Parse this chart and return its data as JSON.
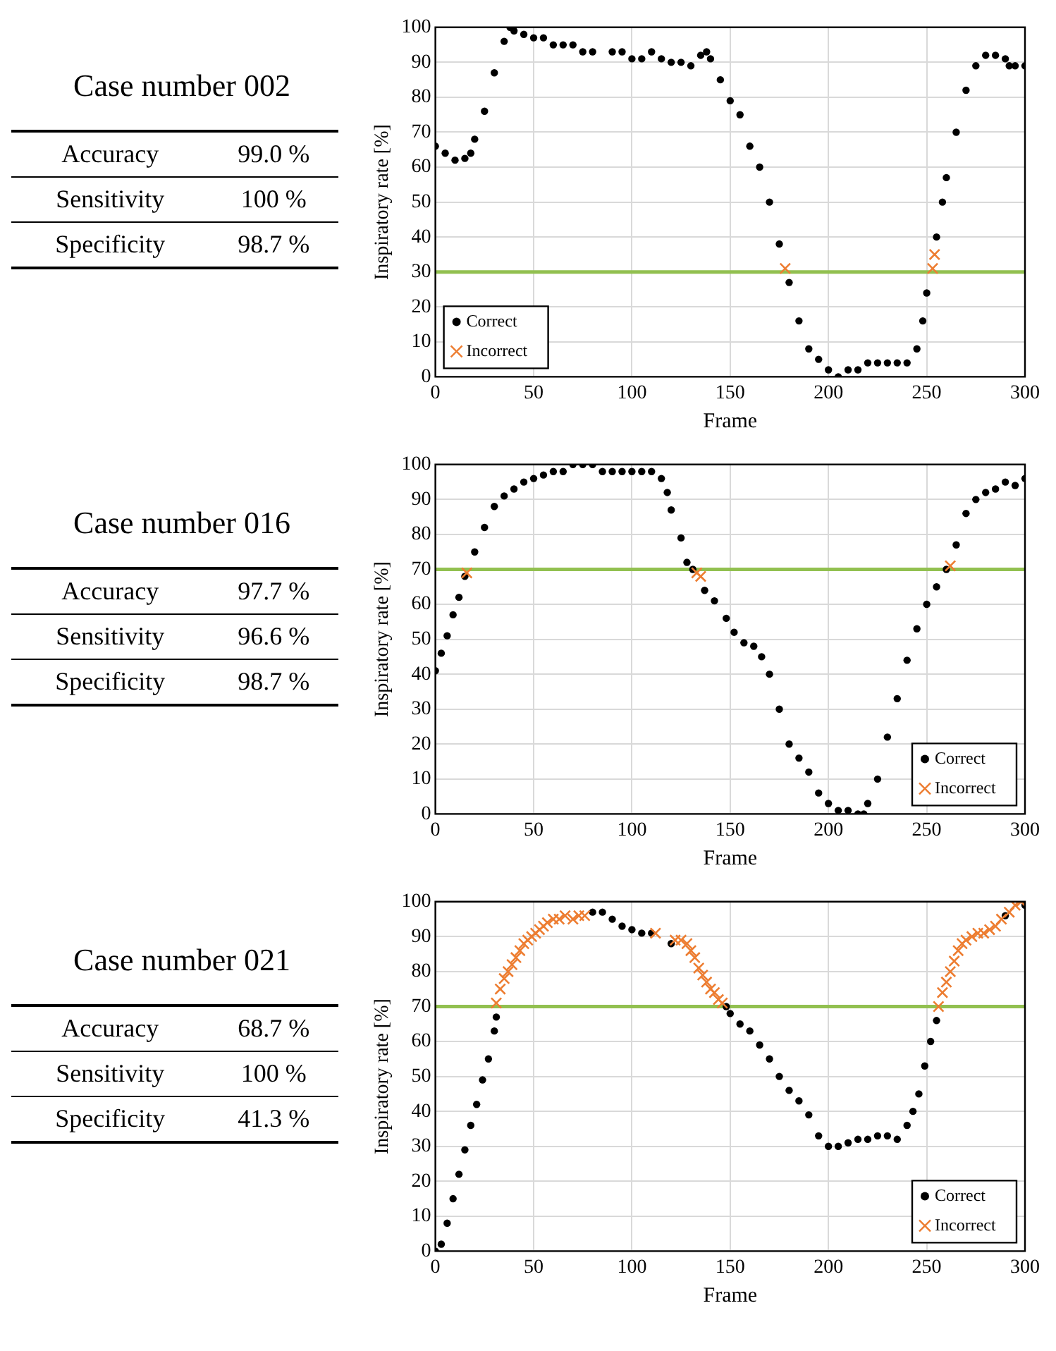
{
  "chart_data": [
    {
      "type": "other",
      "title": "Case number 002",
      "annotations": [
        "Accuracy",
        "99.0 %",
        "Sensitivity",
        "100 %",
        "Specificity",
        "98.7 %"
      ]
    },
    {
      "type": "scatter",
      "xlabel": "Frame",
      "ylabel": "Inspiratory rate [%]",
      "xlim": [
        0,
        300
      ],
      "xticks": [
        0,
        50,
        100,
        150,
        200,
        250,
        300
      ],
      "ylim": [
        0,
        100
      ],
      "yticks": [
        0,
        10,
        20,
        30,
        40,
        50,
        60,
        70,
        80,
        90,
        100
      ],
      "grid": true,
      "legend": "bottom left",
      "ref_lines": [
        {
          "axis": "y",
          "value": 30,
          "color": "#92c050"
        }
      ],
      "series": [
        {
          "name": "Correct",
          "color": "#000000",
          "marker": "circle",
          "x": [
            0,
            5,
            10,
            15,
            18,
            20,
            25,
            30,
            35,
            38,
            40,
            45,
            50,
            55,
            60,
            65,
            70,
            75,
            80,
            90,
            95,
            100,
            105,
            110,
            115,
            120,
            125,
            130,
            135,
            138,
            140,
            145,
            150,
            155,
            160,
            165,
            170,
            175,
            180,
            185,
            190,
            195,
            200,
            205,
            210,
            215,
            220,
            225,
            230,
            235,
            240,
            245,
            248,
            250,
            255,
            258,
            260,
            265,
            270,
            275,
            280,
            285,
            290,
            292,
            295,
            300
          ],
          "values": [
            66,
            64,
            62,
            62.5,
            64,
            68,
            76,
            87,
            96,
            100,
            99,
            98,
            97,
            97,
            95,
            95,
            95,
            93,
            93,
            93,
            93,
            91,
            91,
            93,
            91,
            90,
            90,
            89,
            92,
            93,
            91,
            85,
            79,
            75,
            66,
            60,
            50,
            38,
            27,
            16,
            8,
            5,
            2,
            0,
            2,
            2,
            4,
            4,
            4,
            4,
            4,
            8,
            16,
            24,
            40,
            50,
            57,
            70,
            82,
            89,
            92,
            92,
            91,
            89,
            89,
            89
          ]
        },
        {
          "name": "Incorrect",
          "color": "#ed7d31",
          "marker": "cross",
          "x": [
            178,
            253,
            254
          ],
          "values": [
            31,
            31,
            35
          ]
        }
      ]
    },
    {
      "type": "other",
      "title": "Case number 016",
      "annotations": [
        "Accuracy",
        "97.7 %",
        "Sensitivity",
        "96.6 %",
        "Specificity",
        "98.7 %"
      ]
    },
    {
      "type": "scatter",
      "xlabel": "Frame",
      "ylabel": "Inspiratory rate [%]",
      "xlim": [
        0,
        300
      ],
      "xticks": [
        0,
        50,
        100,
        150,
        200,
        250,
        300
      ],
      "ylim": [
        0,
        100
      ],
      "yticks": [
        0,
        10,
        20,
        30,
        40,
        50,
        60,
        70,
        80,
        90,
        100
      ],
      "grid": true,
      "legend": "bottom right",
      "ref_lines": [
        {
          "axis": "y",
          "value": 70,
          "color": "#92c050"
        }
      ],
      "series": [
        {
          "name": "Correct",
          "color": "#000000",
          "marker": "circle",
          "x": [
            0,
            3,
            6,
            9,
            12,
            15,
            20,
            25,
            30,
            35,
            40,
            45,
            50,
            55,
            60,
            65,
            70,
            75,
            80,
            85,
            90,
            95,
            100,
            105,
            110,
            115,
            118,
            120,
            125,
            128,
            131,
            137,
            142,
            148,
            152,
            157,
            162,
            166,
            170,
            175,
            180,
            185,
            190,
            195,
            200,
            205,
            210,
            215,
            218,
            220,
            225,
            230,
            235,
            240,
            245,
            250,
            255,
            260,
            265,
            270,
            275,
            280,
            285,
            290,
            295,
            300
          ],
          "values": [
            41,
            46,
            51,
            57,
            62,
            68,
            75,
            82,
            88,
            91,
            93,
            95,
            96,
            97,
            98,
            98,
            100,
            100,
            100,
            98,
            98,
            98,
            98,
            98,
            98,
            96,
            92,
            87,
            79,
            72,
            70,
            64,
            61,
            56,
            52,
            49,
            48,
            45,
            40,
            30,
            20,
            16,
            12,
            6,
            3,
            1,
            1,
            0,
            0,
            3,
            10,
            22,
            33,
            44,
            53,
            60,
            65,
            70,
            77,
            86,
            90,
            92,
            93,
            95,
            94,
            96
          ]
        },
        {
          "name": "Incorrect",
          "color": "#ed7d31",
          "marker": "cross",
          "x": [
            16,
            133,
            135,
            262
          ],
          "values": [
            69,
            69,
            68,
            71
          ]
        }
      ]
    },
    {
      "type": "other",
      "title": "Case number 021",
      "annotations": [
        "Accuracy",
        "68.7 %",
        "Sensitivity",
        "100 %",
        "Specificity",
        "41.3 %"
      ]
    },
    {
      "type": "scatter",
      "xlabel": "Frame",
      "ylabel": "Inspiratory rate [%]",
      "xlim": [
        0,
        300
      ],
      "xticks": [
        0,
        50,
        100,
        150,
        200,
        250,
        300
      ],
      "ylim": [
        0,
        100
      ],
      "yticks": [
        0,
        10,
        20,
        30,
        40,
        50,
        60,
        70,
        80,
        90,
        100
      ],
      "grid": true,
      "legend": "bottom right",
      "ref_lines": [
        {
          "axis": "y",
          "value": 70,
          "color": "#92c050"
        }
      ],
      "series": [
        {
          "name": "Correct",
          "color": "#000000",
          "marker": "circle",
          "x": [
            0,
            3,
            6,
            9,
            12,
            15,
            18,
            21,
            24,
            27,
            30,
            31,
            80,
            85,
            90,
            95,
            100,
            105,
            110,
            120,
            148,
            150,
            155,
            160,
            165,
            170,
            175,
            180,
            185,
            190,
            195,
            200,
            205,
            210,
            215,
            220,
            225,
            230,
            235,
            240,
            243,
            246,
            249,
            252,
            255,
            290,
            300
          ],
          "values": [
            0,
            2,
            8,
            15,
            22,
            29,
            36,
            42,
            49,
            55,
            63,
            67,
            97,
            97,
            95,
            93,
            92,
            91,
            91,
            88,
            70,
            68,
            65,
            63,
            59,
            55,
            50,
            46,
            43,
            39,
            33,
            30,
            30,
            31,
            32,
            32,
            33,
            33,
            32,
            36,
            40,
            45,
            53,
            60,
            66,
            96,
            99
          ]
        },
        {
          "name": "Incorrect",
          "color": "#ed7d31",
          "marker": "cross",
          "x": [
            31,
            33,
            35,
            37,
            39,
            41,
            43,
            45,
            47,
            49,
            51,
            53,
            55,
            57,
            60,
            63,
            66,
            70,
            73,
            76,
            112,
            122,
            125,
            128,
            130,
            132,
            134,
            136,
            138,
            140,
            142,
            144,
            146,
            256,
            258,
            260,
            262,
            264,
            266,
            268,
            270,
            273,
            276,
            279,
            282,
            285,
            288,
            292,
            295,
            298
          ],
          "values": [
            71,
            75,
            78,
            80,
            82,
            84,
            86,
            88,
            89,
            90,
            91,
            92,
            93,
            94,
            95,
            95,
            96,
            95,
            96,
            96,
            91,
            89,
            89,
            88,
            86,
            84,
            81,
            79,
            77,
            75,
            74,
            72,
            71,
            70,
            74,
            77,
            80,
            83,
            86,
            88,
            89,
            90,
            91,
            91,
            92,
            93,
            95,
            97,
            99,
            100
          ]
        }
      ]
    }
  ]
}
